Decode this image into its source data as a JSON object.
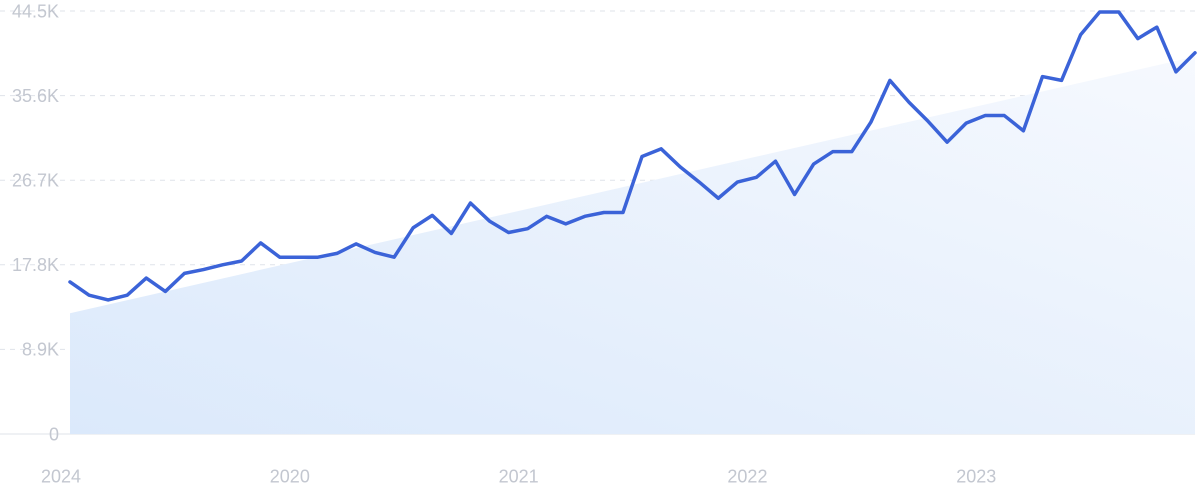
{
  "chart_data": {
    "type": "line",
    "title": "",
    "xlabel": "",
    "ylabel": "",
    "x_tick_labels": [
      "2020",
      "2021",
      "2022",
      "2023",
      "2024"
    ],
    "y_tick_labels": [
      "0",
      "8.9K",
      "17.8K",
      "26.7K",
      "35.6K",
      "44.5K"
    ],
    "ylim": [
      0,
      44500
    ],
    "xlim": [
      "2019-07",
      "2024-06"
    ],
    "grid": true,
    "x": [
      "2019-07",
      "2019-08",
      "2019-09",
      "2019-10",
      "2019-11",
      "2019-12",
      "2020-01",
      "2020-02",
      "2020-03",
      "2020-04",
      "2020-05",
      "2020-06",
      "2020-07",
      "2020-08",
      "2020-09",
      "2020-10",
      "2020-11",
      "2020-12",
      "2021-01",
      "2021-02",
      "2021-03",
      "2021-04",
      "2021-05",
      "2021-06",
      "2021-07",
      "2021-08",
      "2021-09",
      "2021-10",
      "2021-11",
      "2021-12",
      "2022-01",
      "2022-02",
      "2022-03",
      "2022-04",
      "2022-05",
      "2022-06",
      "2022-07",
      "2022-08",
      "2022-09",
      "2022-10",
      "2022-11",
      "2022-12",
      "2023-01",
      "2023-02",
      "2023-03",
      "2023-04",
      "2023-05",
      "2023-06",
      "2023-07",
      "2023-08",
      "2023-09",
      "2023-10",
      "2023-11",
      "2023-12",
      "2024-01",
      "2024-02",
      "2024-03",
      "2024-04",
      "2024-05",
      "2024-06"
    ],
    "series": [
      {
        "values": [
          16000,
          14600,
          14100,
          14600,
          16400,
          15000,
          16900,
          17300,
          17800,
          18200,
          20100,
          18600,
          18600,
          18600,
          19000,
          20000,
          19100,
          18600,
          21700,
          23000,
          21100,
          24300,
          22400,
          21200,
          21600,
          22900,
          22100,
          22900,
          23300,
          23300,
          29200,
          30000,
          28100,
          26500,
          24800,
          26500,
          27000,
          28700,
          25200,
          28400,
          29700,
          29700,
          32800,
          37200,
          34900,
          32900,
          30700,
          32700,
          33500,
          33500,
          31900,
          37600,
          37200,
          42000,
          44400,
          44400,
          41600,
          42800,
          38100,
          40100
        ],
        "color": "#3b63d8"
      }
    ],
    "trend": {
      "start": 12700,
      "end": 39700,
      "fill_color": "#dce9fb"
    }
  }
}
